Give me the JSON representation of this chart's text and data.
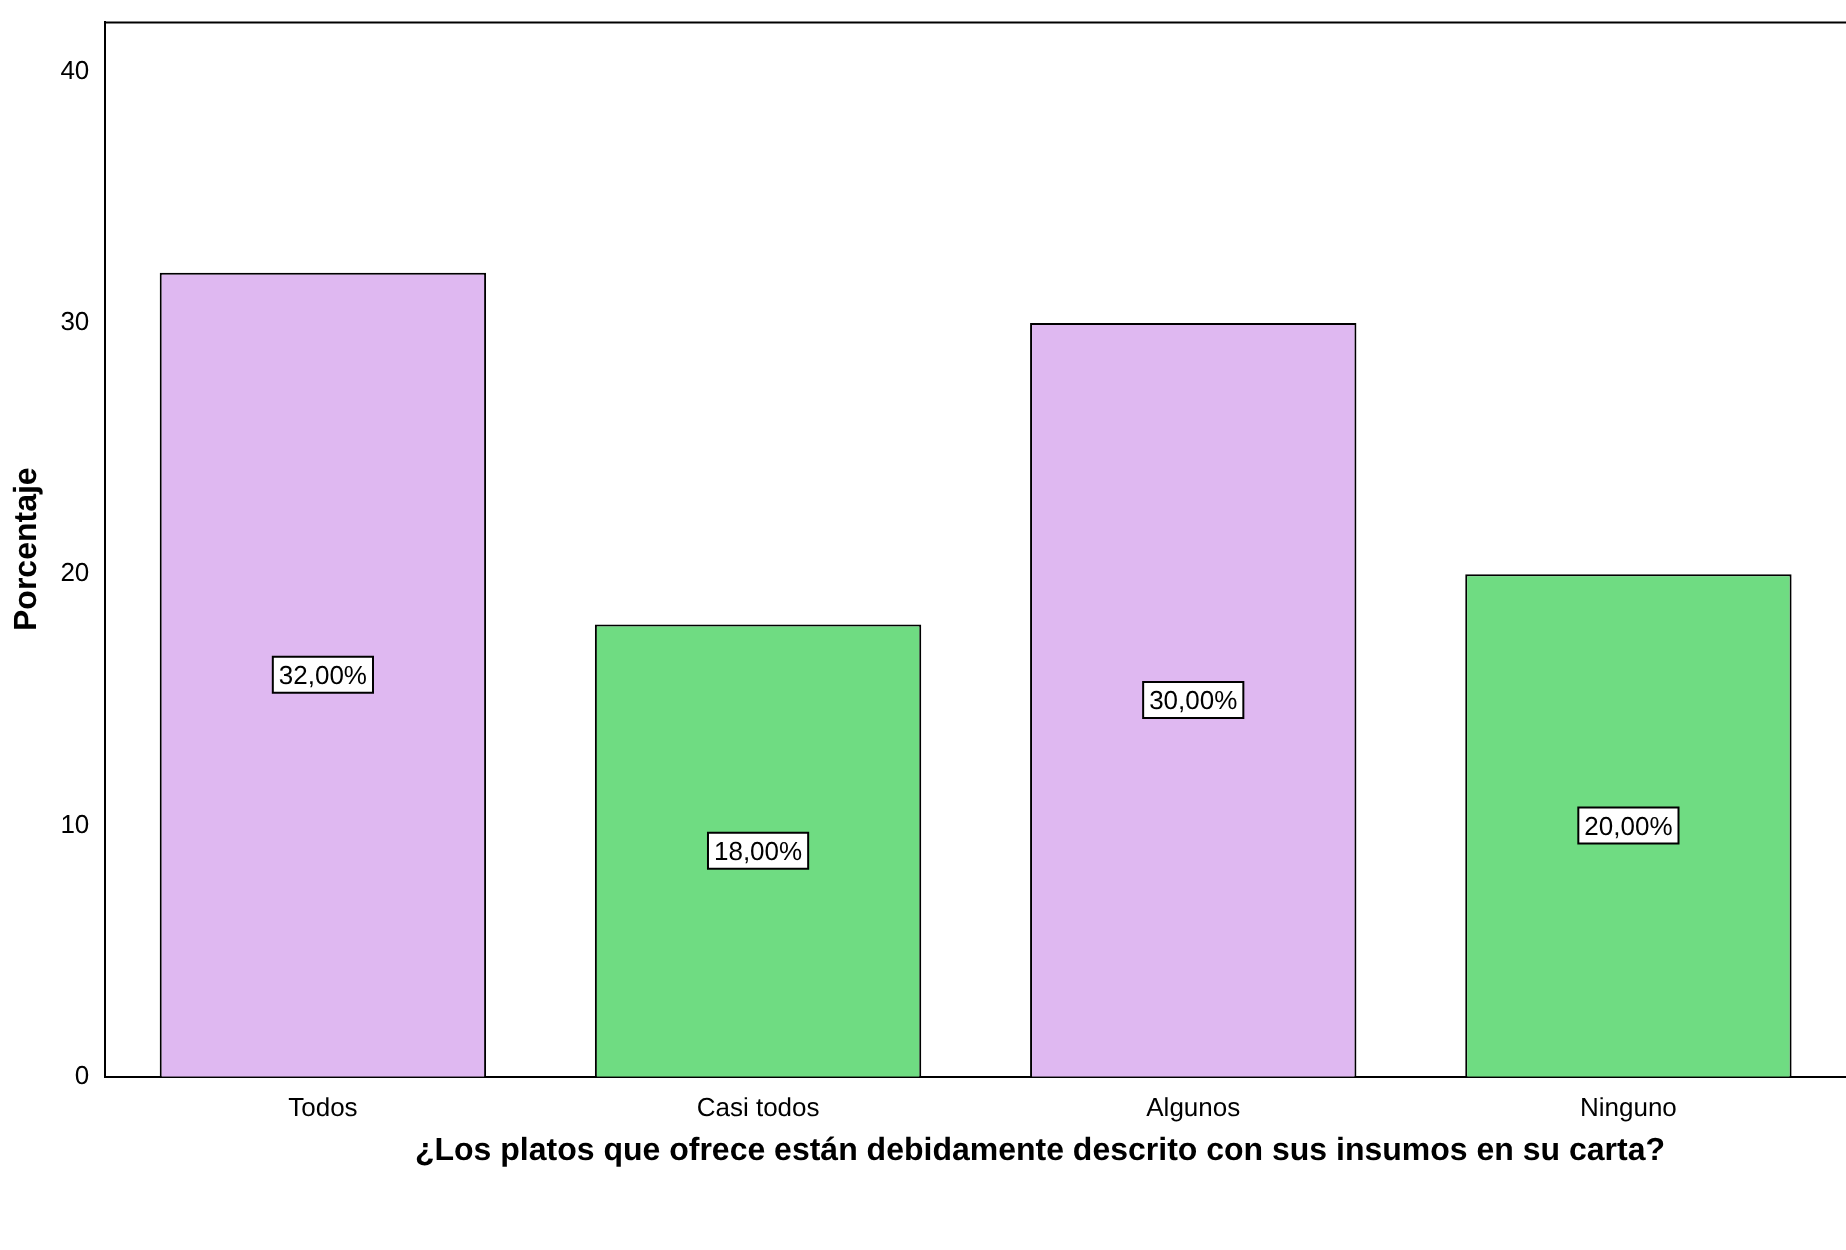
{
  "chart_data": {
    "type": "bar",
    "xlabel": "¿Los platos que ofrece están debidamente descrito con sus insumos en su carta?",
    "ylabel": "Porcentaje",
    "categories": [
      "Todos",
      "Casi todos",
      "Algunos",
      "Ninguno"
    ],
    "values": [
      32,
      18,
      30,
      20
    ],
    "colors": [
      "#dfb8f1",
      "#6fdc82",
      "#dfb8f1",
      "#6fdc82"
    ],
    "value_labels": [
      "32,00%",
      "18,00%",
      "30,00%",
      "20,00%"
    ],
    "ylim": [
      0,
      42
    ],
    "yticks": [
      0,
      10,
      20,
      30,
      40
    ],
    "grid": false,
    "legend": false
  }
}
